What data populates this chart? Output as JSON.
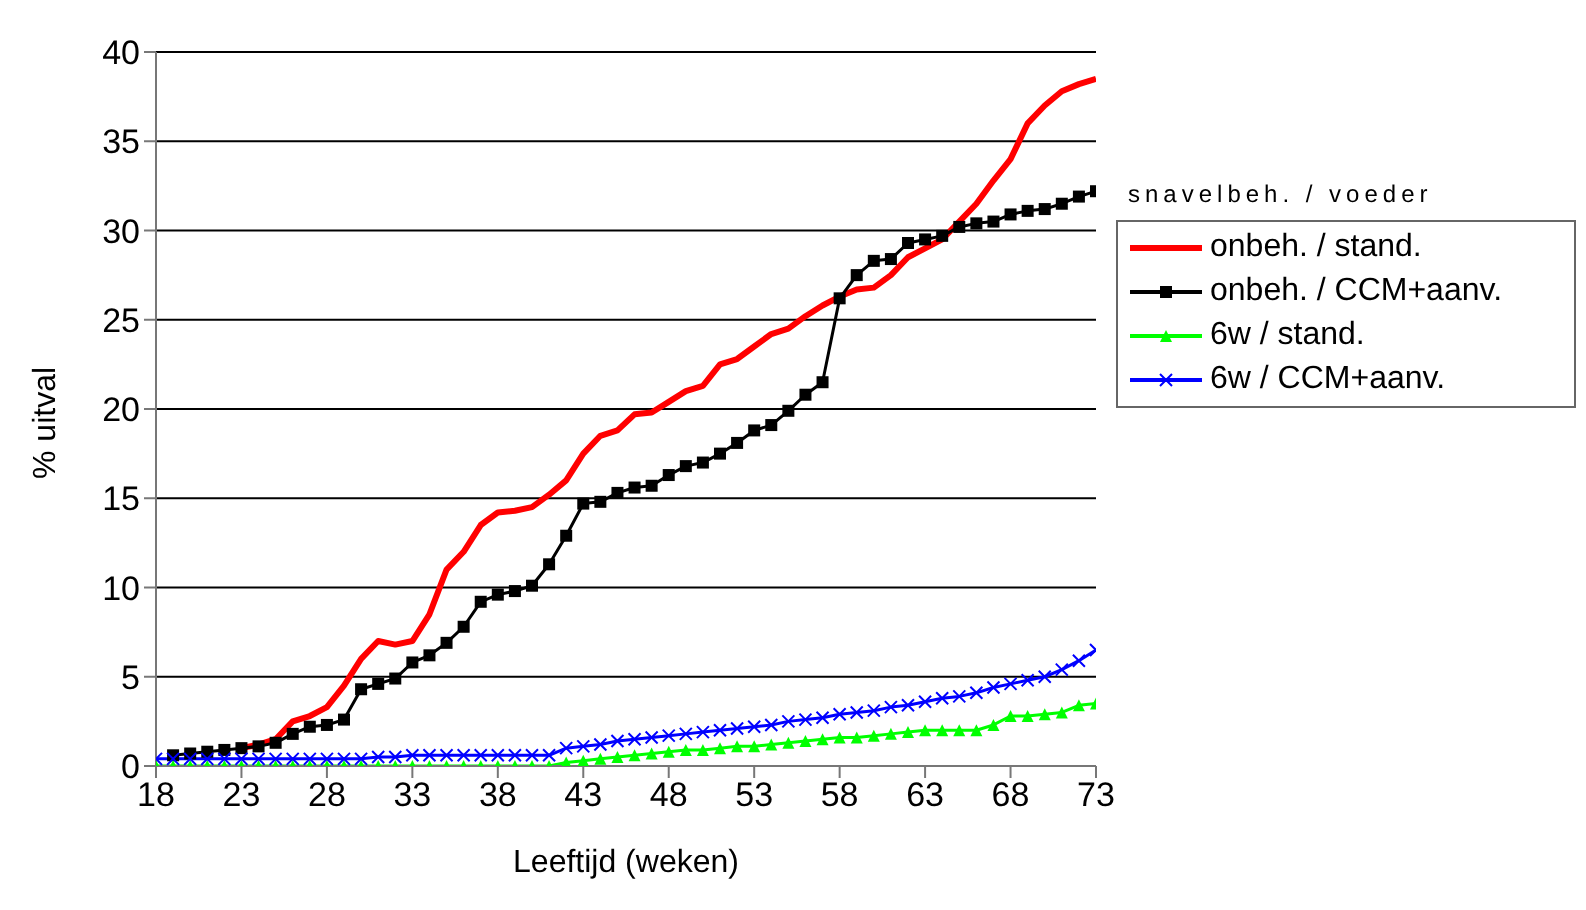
{
  "chart_data": {
    "type": "line",
    "xlabel": "Leeftijd (weken)",
    "ylabel": "% uitval",
    "legend_title": "snavelbeh. / voeder",
    "x": [
      18,
      19,
      20,
      21,
      22,
      23,
      24,
      25,
      26,
      27,
      28,
      29,
      30,
      31,
      32,
      33,
      34,
      35,
      36,
      37,
      38,
      39,
      40,
      41,
      42,
      43,
      44,
      45,
      46,
      47,
      48,
      49,
      50,
      51,
      52,
      53,
      54,
      55,
      56,
      57,
      58,
      59,
      60,
      61,
      62,
      63,
      64,
      65,
      66,
      67,
      68,
      69,
      70,
      71,
      72,
      73
    ],
    "series": [
      {
        "name": "onbeh. / stand.",
        "color": "#ff0000",
        "marker": "none",
        "values": [
          null,
          null,
          null,
          null,
          null,
          1.0,
          1.2,
          1.5,
          2.5,
          2.8,
          3.3,
          4.5,
          6.0,
          7.0,
          6.8,
          7.0,
          8.5,
          11.0,
          12.0,
          13.5,
          14.2,
          14.3,
          14.5,
          15.2,
          16.0,
          17.5,
          18.5,
          18.8,
          19.7,
          19.8,
          20.4,
          21.0,
          21.3,
          22.5,
          22.8,
          23.5,
          24.2,
          24.5,
          25.2,
          25.8,
          26.3,
          26.7,
          26.8,
          27.5,
          28.5,
          29.0,
          29.5,
          30.5,
          31.5,
          32.8,
          34.0,
          36.0,
          37.0,
          37.8,
          38.2,
          38.5
        ]
      },
      {
        "name": "onbeh. / CCM+aanv.",
        "color": "#000000",
        "marker": "square",
        "values": [
          null,
          0.6,
          0.7,
          0.8,
          0.9,
          1.0,
          1.1,
          1.3,
          1.8,
          2.2,
          2.3,
          2.6,
          4.3,
          4.6,
          4.9,
          5.8,
          6.2,
          6.9,
          7.8,
          9.2,
          9.6,
          9.8,
          10.1,
          11.3,
          12.9,
          14.7,
          14.8,
          15.3,
          15.6,
          15.7,
          16.3,
          16.8,
          17.0,
          17.5,
          18.1,
          18.8,
          19.1,
          19.9,
          20.8,
          21.5,
          26.2,
          27.5,
          28.3,
          28.4,
          29.3,
          29.5,
          29.7,
          30.2,
          30.4,
          30.5,
          30.9,
          31.1,
          31.2,
          31.5,
          31.9,
          32.2
        ]
      },
      {
        "name": "6w / stand.",
        "color": "#00ff00",
        "marker": "triangle",
        "values": [
          0,
          0,
          0,
          0,
          0,
          0,
          0,
          0,
          0,
          0,
          0,
          0,
          0,
          0,
          0,
          0,
          0,
          0,
          0,
          0,
          0,
          0,
          0,
          0,
          0.2,
          0.3,
          0.4,
          0.5,
          0.6,
          0.7,
          0.8,
          0.9,
          0.9,
          1.0,
          1.1,
          1.1,
          1.2,
          1.3,
          1.4,
          1.5,
          1.6,
          1.6,
          1.7,
          1.8,
          1.9,
          2.0,
          2.0,
          2.0,
          2.0,
          2.3,
          2.8,
          2.8,
          2.9,
          3.0,
          3.4,
          3.5
        ]
      },
      {
        "name": "6w / CCM+aanv.",
        "color": "#0000ff",
        "marker": "cross",
        "values": [
          0.4,
          0.4,
          0.4,
          0.4,
          0.4,
          0.4,
          0.4,
          0.4,
          0.4,
          0.4,
          0.4,
          0.4,
          0.4,
          0.5,
          0.5,
          0.6,
          0.6,
          0.6,
          0.6,
          0.6,
          0.6,
          0.6,
          0.6,
          0.6,
          1.0,
          1.1,
          1.2,
          1.4,
          1.5,
          1.6,
          1.7,
          1.8,
          1.9,
          2.0,
          2.1,
          2.2,
          2.3,
          2.5,
          2.6,
          2.7,
          2.9,
          3.0,
          3.1,
          3.3,
          3.4,
          3.6,
          3.8,
          3.9,
          4.1,
          4.4,
          4.6,
          4.8,
          5.0,
          5.4,
          5.9,
          6.5
        ]
      }
    ],
    "xlim": [
      18,
      73
    ],
    "xticks": [
      18,
      23,
      28,
      33,
      38,
      43,
      48,
      53,
      58,
      63,
      68,
      73
    ],
    "ylim": [
      0,
      40
    ],
    "yticks": [
      0,
      5,
      10,
      15,
      20,
      25,
      30,
      35,
      40
    ],
    "grid": "y",
    "legend": "right"
  }
}
